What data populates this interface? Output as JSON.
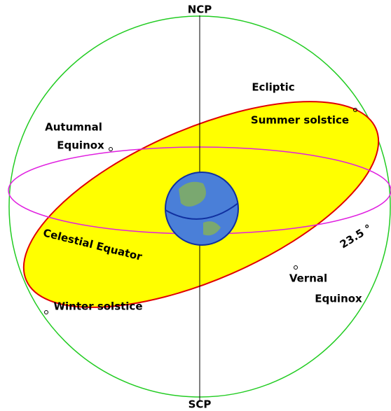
{
  "labels": {
    "ncp": "NCP",
    "scp": "SCP",
    "ecliptic": "Ecliptic",
    "summer_solstice": "Summer solstice",
    "autumnal_equinox": [
      "Autumnal",
      "Equinox"
    ],
    "celestial_equator": "Celestial  Equator",
    "winter_solstice": "Winter solstice",
    "vernal_equinox": [
      "Vernal",
      "Equinox"
    ],
    "tilt": "23.5 °"
  }
}
